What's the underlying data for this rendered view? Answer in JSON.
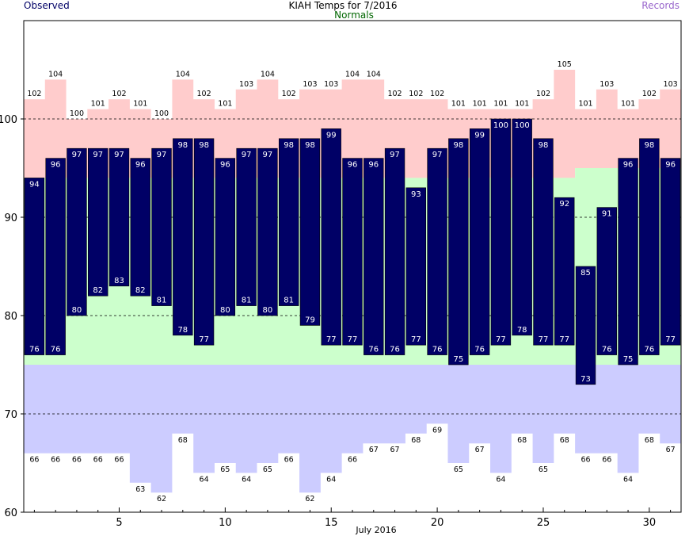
{
  "header": {
    "title": "KIAH Temps for 7/2016",
    "observed_label": "Observed",
    "normals_label": "Normals",
    "records_label": "Records"
  },
  "colors": {
    "observed": "#000066",
    "observed_text": "#ffffff",
    "normal_band": "#ccffcc",
    "record_high_band": "#ffcccc",
    "record_low_band": "#ccccff",
    "normals_label": "#006600",
    "records_label": "#9966cc",
    "observed_label": "#000066"
  },
  "chart_data": {
    "type": "bar",
    "title": "KIAH Temps for 7/2016",
    "xlabel": "July 2016",
    "ylabel": "",
    "days": [
      1,
      2,
      3,
      4,
      5,
      6,
      7,
      8,
      9,
      10,
      11,
      12,
      13,
      14,
      15,
      16,
      17,
      18,
      19,
      20,
      21,
      22,
      23,
      24,
      25,
      26,
      27,
      28,
      29,
      30,
      31
    ],
    "xticks": [
      5,
      10,
      15,
      20,
      25,
      30
    ],
    "ylim": [
      60,
      110
    ],
    "yticks": [
      60,
      70,
      80,
      90,
      100
    ],
    "dashed_gridlines": [
      70,
      80,
      90,
      100
    ],
    "series": [
      {
        "name": "Observed",
        "kind": "high",
        "values": [
          94,
          96,
          97,
          97,
          97,
          96,
          97,
          98,
          98,
          96,
          97,
          97,
          98,
          98,
          99,
          96,
          96,
          97,
          93,
          97,
          98,
          99,
          100,
          100,
          98,
          92,
          85,
          91,
          96,
          98,
          96
        ]
      },
      {
        "name": "Observed",
        "kind": "low",
        "values": [
          76,
          76,
          80,
          82,
          83,
          82,
          81,
          78,
          77,
          80,
          81,
          80,
          81,
          79,
          77,
          77,
          76,
          76,
          77,
          76,
          75,
          76,
          77,
          78,
          77,
          77,
          73,
          76,
          75,
          76,
          77
        ]
      },
      {
        "name": "Normals",
        "kind": "high",
        "values": [
          94,
          94,
          94,
          94,
          94,
          94,
          94,
          94,
          94,
          94,
          94,
          94,
          94,
          94,
          94,
          94,
          94,
          94,
          94,
          94,
          94,
          94,
          94,
          94,
          94,
          94,
          95,
          95,
          95,
          95,
          95
        ]
      },
      {
        "name": "Normals",
        "kind": "low",
        "values": [
          75,
          75,
          75,
          75,
          75,
          75,
          75,
          75,
          75,
          75,
          75,
          75,
          75,
          75,
          75,
          75,
          75,
          75,
          75,
          75,
          75,
          75,
          75,
          75,
          75,
          75,
          75,
          75,
          75,
          75,
          75
        ]
      },
      {
        "name": "Records",
        "kind": "high",
        "values": [
          102,
          104,
          100,
          101,
          102,
          101,
          100,
          104,
          102,
          101,
          103,
          104,
          102,
          103,
          103,
          104,
          104,
          102,
          102,
          102,
          101,
          101,
          101,
          101,
          102,
          105,
          101,
          103,
          101,
          102,
          103
        ]
      },
      {
        "name": "Records",
        "kind": "low",
        "values": [
          66,
          66,
          66,
          66,
          66,
          63,
          62,
          68,
          64,
          65,
          64,
          65,
          66,
          62,
          64,
          66,
          67,
          67,
          68,
          69,
          65,
          67,
          64,
          68,
          65,
          68,
          66,
          66,
          64,
          68,
          67
        ]
      }
    ]
  }
}
